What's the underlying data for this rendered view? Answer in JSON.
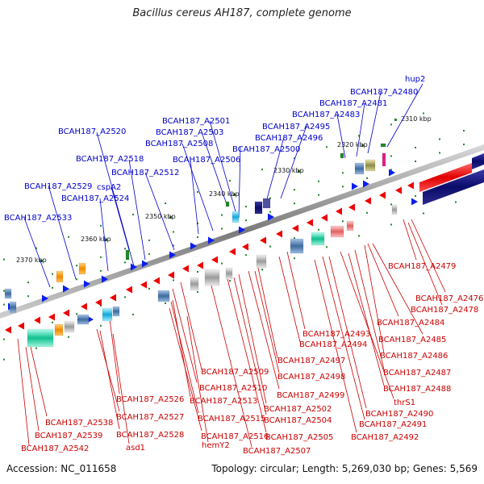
{
  "title": "Bacillus cereus AH187, complete genome",
  "footer": {
    "accession": "Accession: NC_011658",
    "summary": "Topology: circular; Length: 5,269,030 bp; Genes: 5,569"
  },
  "colors": {
    "forward_label": "#0000cc",
    "reverse_label": "#cc0000",
    "forward_arrow": "#0a1ef0",
    "reverse_arrow": "#ee0000",
    "backbone": "#8a8a8a",
    "tick": "#22882a"
  },
  "scale_ticks": [
    "2310 kbp",
    "2320 kbp",
    "2330 kbp",
    "2340 kbp",
    "2350 kbp",
    "2360 kbp",
    "2370 kbp"
  ],
  "forward_genes": [
    "hup2",
    "BCAH187_A2480",
    "BCAH187_A2481",
    "BCAH187_A2483",
    "BCAH187_A2495",
    "BCAH187_A2496",
    "BCAH187_A2501",
    "BCAH187_A2503",
    "BCAH187_A2500",
    "BCAH187_A2508",
    "BCAH187_A2520",
    "BCAH187_A2506",
    "BCAH187_A2518",
    "BCAH187_A2512",
    "BCAH187_A2529",
    "cspA2",
    "BCAH187_A2524",
    "BCAH187_A2533"
  ],
  "reverse_genes": [
    "BCAH187_A2479",
    "BCAH187_A2476",
    "BCAH187_A2478",
    "BCAH187_A2484",
    "BCAH187_A2493",
    "BCAH187_A2485",
    "BCAH187_A2494",
    "BCAH187_A2486",
    "BCAH187_A2497",
    "BCAH187_A2509",
    "BCAH187_A2487",
    "BCAH187_A2498",
    "BCAH187_A2510",
    "BCAH187_A2488",
    "BCAH187_A2499",
    "BCAH187_A2526",
    "BCAH187_A2513",
    "thrS1",
    "BCAH187_A2502",
    "BCAH187_A2490",
    "BCAH187_A2538",
    "BCAH187_A2527",
    "BCAH187_A2515",
    "BCAH187_A2504",
    "BCAH187_A2491",
    "BCAH187_A2539",
    "BCAH187_A2528",
    "BCAH187_A2516",
    "BCAH187_A2505",
    "BCAH187_A2492",
    "BCAH187_A2542",
    "asd1",
    "hemY2",
    "BCAH187_A2507"
  ]
}
